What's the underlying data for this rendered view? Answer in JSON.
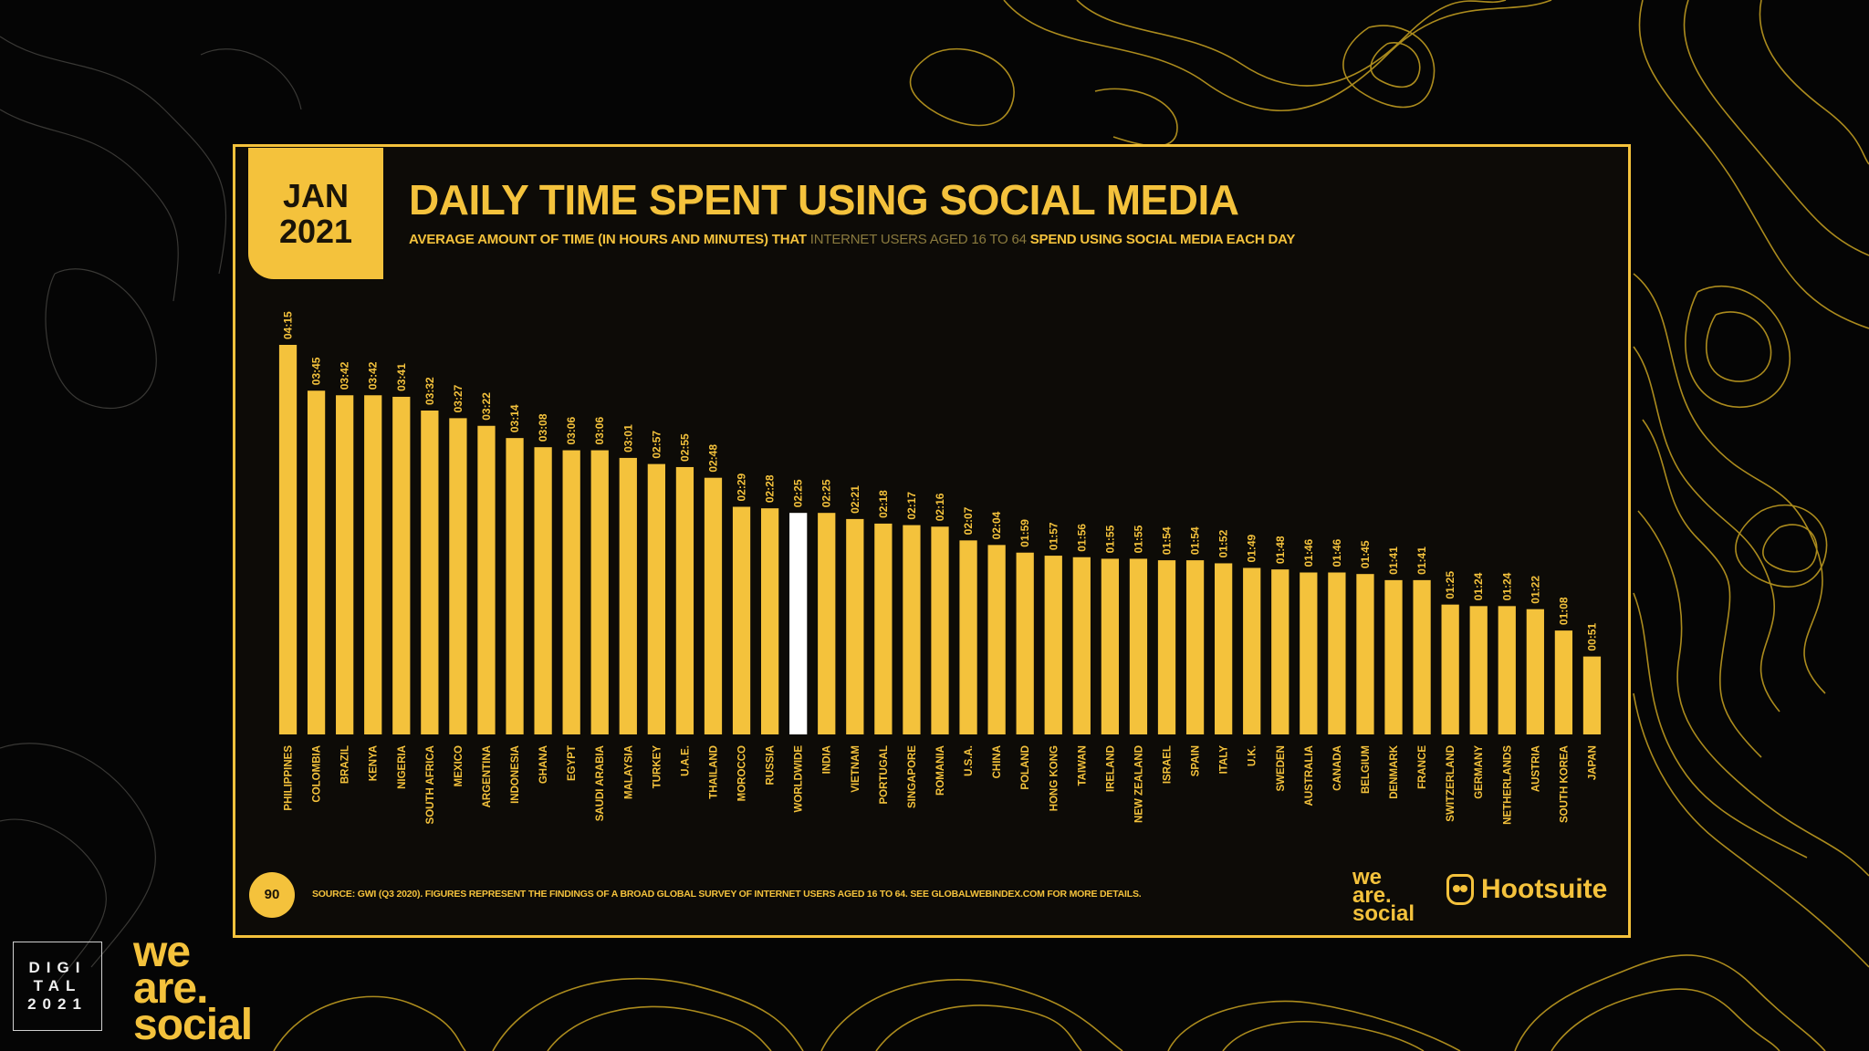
{
  "badge": {
    "month": "JAN",
    "year": "2021"
  },
  "header": {
    "title": "DAILY TIME SPENT USING SOCIAL MEDIA",
    "subtitle_pre": "AVERAGE AMOUNT OF TIME (IN HOURS AND MINUTES) THAT",
    "subtitle_highlight": "INTERNET USERS AGED 16 TO 64",
    "subtitle_post": "SPEND USING SOCIAL MEDIA EACH DAY"
  },
  "chart_data": {
    "type": "bar",
    "title": "DAILY TIME SPENT USING SOCIAL MEDIA",
    "xlabel": "",
    "ylabel": "",
    "ylim": [
      0,
      260
    ],
    "categories": [
      "PHILIPPINES",
      "COLOMBIA",
      "BRAZIL",
      "KENYA",
      "NIGERIA",
      "SOUTH AFRICA",
      "MEXICO",
      "ARGENTINA",
      "INDONESIA",
      "GHANA",
      "EGYPT",
      "SAUDI ARABIA",
      "MALAYSIA",
      "TURKEY",
      "U.A.E.",
      "THAILAND",
      "MOROCCO",
      "RUSSIA",
      "WORLDWIDE",
      "INDIA",
      "VIETNAM",
      "PORTUGAL",
      "SINGAPORE",
      "ROMANIA",
      "U.S.A.",
      "CHINA",
      "POLAND",
      "HONG KONG",
      "TAIWAN",
      "IRELAND",
      "NEW ZEALAND",
      "ISRAEL",
      "SPAIN",
      "ITALY",
      "U.K.",
      "SWEDEN",
      "AUSTRALIA",
      "CANADA",
      "BELGIUM",
      "DENMARK",
      "FRANCE",
      "SWITZERLAND",
      "GERMANY",
      "NETHERLANDS",
      "AUSTRIA",
      "SOUTH KOREA",
      "JAPAN"
    ],
    "labels": [
      "04:15",
      "03:45",
      "03:42",
      "03:42",
      "03:41",
      "03:32",
      "03:27",
      "03:22",
      "03:14",
      "03:08",
      "03:06",
      "03:06",
      "03:01",
      "02:57",
      "02:55",
      "02:48",
      "02:29",
      "02:28",
      "02:25",
      "02:25",
      "02:21",
      "02:18",
      "02:17",
      "02:16",
      "02:07",
      "02:04",
      "01:59",
      "01:57",
      "01:56",
      "01:55",
      "01:55",
      "01:54",
      "01:54",
      "01:52",
      "01:49",
      "01:48",
      "01:46",
      "01:46",
      "01:45",
      "01:41",
      "01:41",
      "01:25",
      "01:24",
      "01:24",
      "01:22",
      "01:08",
      "00:51"
    ],
    "values": [
      255,
      225,
      222,
      222,
      221,
      212,
      207,
      202,
      194,
      188,
      186,
      186,
      181,
      177,
      175,
      168,
      149,
      148,
      145,
      145,
      141,
      138,
      137,
      136,
      127,
      124,
      119,
      117,
      116,
      115,
      115,
      114,
      114,
      112,
      109,
      108,
      106,
      106,
      105,
      101,
      101,
      85,
      84,
      84,
      82,
      68,
      51
    ],
    "highlight": "WORLDWIDE",
    "bar_color": "#f4c23c",
    "highlight_color": "#ffffff"
  },
  "footer": {
    "page_number": "90",
    "source": "SOURCE: GWI (Q3 2020). FIGURES REPRESENT THE FINDINGS OF A BROAD GLOBAL SURVEY OF INTERNET USERS AGED 16 TO 64. SEE GLOBALWEBINDEX.COM FOR MORE DETAILS.",
    "logo_was": [
      "we",
      "are.",
      "social"
    ],
    "logo_hootsuite": "Hootsuite"
  },
  "corner": {
    "digital": [
      "DIGI",
      "TAL",
      "2021"
    ],
    "logo": [
      "we",
      "are.",
      "social"
    ]
  },
  "colors": {
    "accent": "#f4c23c",
    "background": "#050505"
  }
}
